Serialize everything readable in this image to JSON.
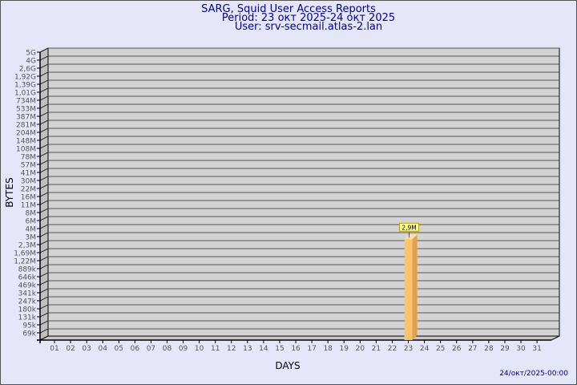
{
  "chart_data": {
    "type": "bar",
    "title": "SARG, Squid User Access Reports",
    "subtitle_period": "Period: 23 окт 2025-24 окт 2025",
    "subtitle_user": "User: srv-secmail.atlas-2.lan",
    "xlabel": "DAYS",
    "ylabel": "BYTES",
    "y_tick_labels": [
      "5G",
      "4G",
      "2,6G",
      "1,92G",
      "1,39G",
      "1,01G",
      "734M",
      "533M",
      "387M",
      "281M",
      "204M",
      "148M",
      "108M",
      "78M",
      "57M",
      "41M",
      "30M",
      "22M",
      "16M",
      "11M",
      "8M",
      "6M",
      "4M",
      "3M",
      "2,3M",
      "1,69M",
      "1,22M",
      "889k",
      "646k",
      "469k",
      "341k",
      "247k",
      "180k",
      "131k",
      "95k",
      "69k"
    ],
    "categories": [
      "01",
      "02",
      "03",
      "04",
      "05",
      "06",
      "07",
      "08",
      "09",
      "10",
      "11",
      "12",
      "13",
      "14",
      "15",
      "16",
      "17",
      "18",
      "19",
      "20",
      "21",
      "22",
      "23",
      "24",
      "25",
      "26",
      "27",
      "28",
      "29",
      "30",
      "31"
    ],
    "values": [
      0,
      0,
      0,
      0,
      0,
      0,
      0,
      0,
      0,
      0,
      0,
      0,
      0,
      0,
      0,
      0,
      0,
      0,
      0,
      0,
      0,
      0,
      2.9,
      0,
      0,
      0,
      0,
      0,
      0,
      0,
      0
    ],
    "value_unit": "M",
    "data_labels": {
      "23": "2,9M"
    },
    "grid": true,
    "colors": {
      "bar": "#fbc46c",
      "bar_side": "#e0a250",
      "wall": "#d3d3d3",
      "title": "#00008b",
      "label_box": "#ffff99"
    }
  },
  "footer": {
    "timestamp": "24/окт/2025-00:00"
  }
}
